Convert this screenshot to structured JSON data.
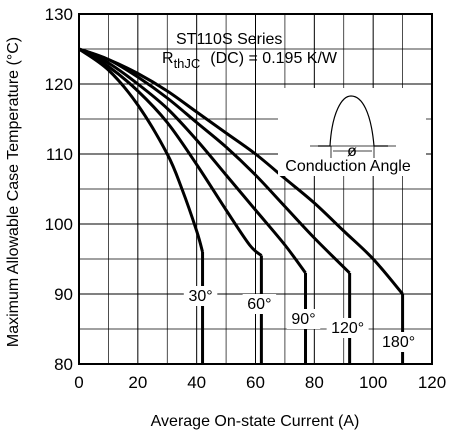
{
  "chart_data": {
    "type": "line",
    "title_line1": "ST110S Series",
    "title_r_main": "R",
    "title_r_sub": "thJC",
    "title_rest": "(DC) = 0.195 K/W",
    "xlabel": "Average On-state Current (A)",
    "ylabel": "Maximum Allowable Case Temperature (°C)",
    "xlim": [
      0,
      120
    ],
    "ylim": [
      80,
      130
    ],
    "xticks": [
      "0",
      "20",
      "40",
      "60",
      "80",
      "100",
      "120"
    ],
    "yticks": [
      "80",
      "90",
      "100",
      "110",
      "120",
      "130"
    ],
    "grid": true,
    "inset_label": "Conduction Angle",
    "inset_symbol": "ø",
    "series": [
      {
        "name": "30°",
        "points": [
          [
            0,
            125
          ],
          [
            10,
            122
          ],
          [
            20,
            117
          ],
          [
            30,
            110
          ],
          [
            35,
            105
          ],
          [
            40,
            99
          ],
          [
            42,
            96
          ]
        ],
        "drop_to": 80
      },
      {
        "name": "60°",
        "points": [
          [
            0,
            125
          ],
          [
            10,
            122.5
          ],
          [
            20,
            119
          ],
          [
            30,
            114.5
          ],
          [
            40,
            108.5
          ],
          [
            50,
            102
          ],
          [
            58,
            97
          ],
          [
            62,
            95.5
          ]
        ],
        "drop_to": 80
      },
      {
        "name": "90°",
        "points": [
          [
            0,
            125
          ],
          [
            10,
            123
          ],
          [
            20,
            120
          ],
          [
            30,
            116.5
          ],
          [
            40,
            112
          ],
          [
            50,
            107
          ],
          [
            60,
            102
          ],
          [
            70,
            97
          ],
          [
            77,
            93
          ]
        ],
        "drop_to": 80
      },
      {
        "name": "120°",
        "points": [
          [
            0,
            125
          ],
          [
            10,
            123.5
          ],
          [
            20,
            121
          ],
          [
            30,
            118
          ],
          [
            40,
            114.5
          ],
          [
            50,
            111
          ],
          [
            60,
            107
          ],
          [
            70,
            102.5
          ],
          [
            80,
            98
          ],
          [
            92,
            93
          ]
        ],
        "drop_to": 80
      },
      {
        "name": "180°",
        "points": [
          [
            0,
            125
          ],
          [
            10,
            123.5
          ],
          [
            20,
            121.5
          ],
          [
            30,
            119
          ],
          [
            40,
            116
          ],
          [
            50,
            113
          ],
          [
            60,
            110
          ],
          [
            70,
            106.5
          ],
          [
            80,
            103
          ],
          [
            90,
            99
          ],
          [
            100,
            95
          ],
          [
            110,
            90
          ]
        ],
        "drop_to": 80
      }
    ]
  }
}
